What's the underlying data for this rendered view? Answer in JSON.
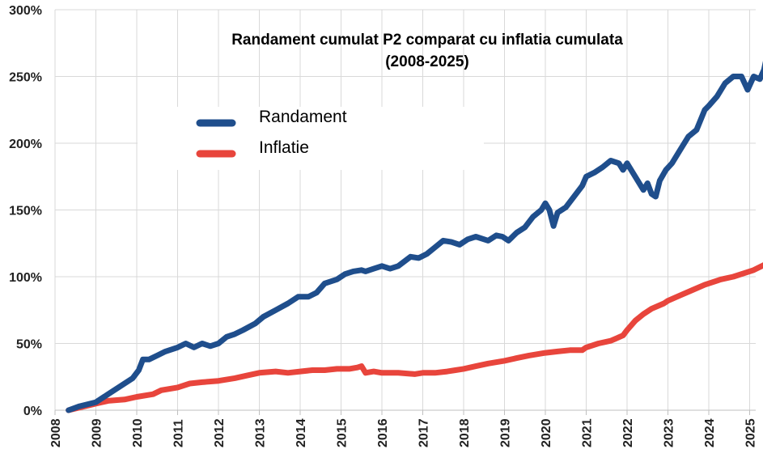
{
  "chart_data": {
    "type": "line",
    "title": "Randament cumulat P2 comparat cu inflatia cumulata",
    "subtitle": "(2008-2025)",
    "xlabel": "",
    "ylabel": "",
    "xlim": [
      2008,
      2025.42
    ],
    "ylim": [
      0,
      300
    ],
    "x_ticks": [
      "2008",
      "2009",
      "2010",
      "2011",
      "2012",
      "2013",
      "2014",
      "2015",
      "2016",
      "2017",
      "2018",
      "2019",
      "2020",
      "2021",
      "2022",
      "2023",
      "2024",
      "2025"
    ],
    "y_ticks": [
      0,
      50,
      100,
      150,
      200,
      250,
      300
    ],
    "y_tick_labels": [
      "0%",
      "50%",
      "100%",
      "150%",
      "200%",
      "250%",
      "300%"
    ],
    "grid": true,
    "legend_position": "top-left",
    "series": [
      {
        "name": "Randament",
        "color": "#1f4e8c",
        "x": [
          2008.33,
          2008.6,
          2009.0,
          2009.3,
          2009.6,
          2009.9,
          2010.05,
          2010.15,
          2010.3,
          2010.5,
          2010.7,
          2011.0,
          2011.2,
          2011.4,
          2011.6,
          2011.8,
          2012.0,
          2012.2,
          2012.4,
          2012.6,
          2012.9,
          2013.1,
          2013.4,
          2013.7,
          2013.95,
          2014.2,
          2014.4,
          2014.6,
          2014.9,
          2015.1,
          2015.3,
          2015.5,
          2015.6,
          2015.8,
          2016.0,
          2016.2,
          2016.4,
          2016.7,
          2016.9,
          2017.1,
          2017.3,
          2017.5,
          2017.7,
          2017.9,
          2018.1,
          2018.3,
          2018.6,
          2018.8,
          2018.95,
          2019.1,
          2019.3,
          2019.5,
          2019.7,
          2019.9,
          2020.0,
          2020.1,
          2020.2,
          2020.3,
          2020.5,
          2020.7,
          2020.9,
          2021.0,
          2021.2,
          2021.4,
          2021.6,
          2021.8,
          2021.9,
          2022.0,
          2022.2,
          2022.4,
          2022.5,
          2022.6,
          2022.7,
          2022.8,
          2022.95,
          2023.1,
          2023.3,
          2023.5,
          2023.7,
          2023.9,
          2024.0,
          2024.2,
          2024.4,
          2024.6,
          2024.8,
          2024.95,
          2025.1,
          2025.25,
          2025.35,
          2025.42
        ],
        "values": [
          0,
          3,
          6,
          12,
          18,
          24,
          30,
          38,
          38,
          41,
          44,
          47,
          50,
          47,
          50,
          48,
          50,
          55,
          57,
          60,
          65,
          70,
          75,
          80,
          85,
          85,
          88,
          95,
          98,
          102,
          104,
          105,
          104,
          106,
          108,
          106,
          108,
          115,
          114,
          117,
          122,
          127,
          126,
          124,
          128,
          130,
          127,
          131,
          130,
          127,
          133,
          137,
          145,
          150,
          155,
          150,
          138,
          148,
          152,
          160,
          168,
          175,
          178,
          182,
          187,
          185,
          180,
          185,
          175,
          165,
          170,
          162,
          160,
          172,
          180,
          185,
          195,
          205,
          210,
          225,
          228,
          235,
          245,
          250,
          250,
          240,
          250,
          248,
          255,
          265
        ]
      },
      {
        "name": "Inflatie",
        "color": "#e8453c",
        "x": [
          2008.33,
          2008.6,
          2009.0,
          2009.3,
          2009.7,
          2010.0,
          2010.4,
          2010.6,
          2011.0,
          2011.3,
          2011.6,
          2012.0,
          2012.4,
          2012.7,
          2013.0,
          2013.4,
          2013.7,
          2014.0,
          2014.3,
          2014.6,
          2014.9,
          2015.2,
          2015.4,
          2015.5,
          2015.6,
          2015.8,
          2016.0,
          2016.4,
          2016.8,
          2017.0,
          2017.3,
          2017.6,
          2017.8,
          2018.0,
          2018.3,
          2018.6,
          2019.0,
          2019.3,
          2019.6,
          2020.0,
          2020.3,
          2020.6,
          2020.9,
          2021.0,
          2021.3,
          2021.6,
          2021.9,
          2022.0,
          2022.2,
          2022.4,
          2022.6,
          2022.9,
          2023.0,
          2023.3,
          2023.6,
          2023.9,
          2024.0,
          2024.3,
          2024.6,
          2024.9,
          2025.1,
          2025.3,
          2025.42
        ],
        "values": [
          0,
          2,
          5,
          7,
          8,
          10,
          12,
          15,
          17,
          20,
          21,
          22,
          24,
          26,
          28,
          29,
          28,
          29,
          30,
          30,
          31,
          31,
          32,
          33,
          28,
          29,
          28,
          28,
          27,
          28,
          28,
          29,
          30,
          31,
          33,
          35,
          37,
          39,
          41,
          43,
          44,
          45,
          45,
          47,
          50,
          52,
          56,
          60,
          67,
          72,
          76,
          80,
          82,
          86,
          90,
          94,
          95,
          98,
          100,
          103,
          105,
          108,
          110
        ]
      }
    ]
  }
}
